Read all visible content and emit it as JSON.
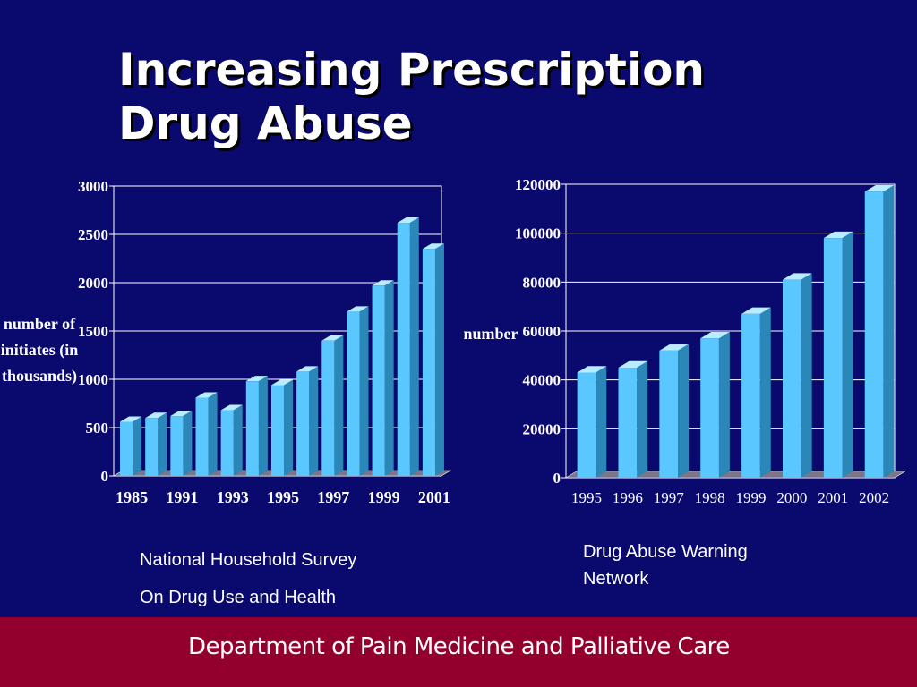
{
  "slide": {
    "title_line1": "Increasing Prescription",
    "title_line2": "Drug Abuse",
    "footer": "Department of Pain Medicine and Palliative Care",
    "colors": {
      "background": "#0a0a6e",
      "bar": "#5ac8ff",
      "footer": "#94002e",
      "text": "#ffffff"
    }
  },
  "captions": {
    "left_line1": "National Household Survey",
    "left_line2": "On Drug Use and Health",
    "right_line1": "Drug Abuse Warning",
    "right_line2": "Network"
  },
  "chart_data": [
    {
      "type": "bar",
      "ylabel": [
        "number of",
        "initiates (in",
        "thousands)"
      ],
      "ylim": [
        0,
        3000
      ],
      "yticks": [
        0,
        500,
        1000,
        1500,
        2000,
        2500,
        3000
      ],
      "xtick_labels": [
        "1985",
        "1991",
        "1993",
        "1995",
        "1997",
        "1999",
        "2001"
      ],
      "values": [
        560,
        600,
        620,
        810,
        680,
        980,
        940,
        1080,
        1400,
        1700,
        1970,
        2620,
        2350
      ],
      "grid": true
    },
    {
      "type": "bar",
      "ylabel": "number",
      "ylim": [
        0,
        120000
      ],
      "yticks": [
        0,
        20000,
        40000,
        60000,
        80000,
        100000,
        120000
      ],
      "categories": [
        "1995",
        "1996",
        "1997",
        "1998",
        "1999",
        "2000",
        "2001",
        "2002"
      ],
      "values": [
        43000,
        45000,
        52000,
        57000,
        67000,
        81000,
        98000,
        117000
      ],
      "grid": true
    }
  ]
}
